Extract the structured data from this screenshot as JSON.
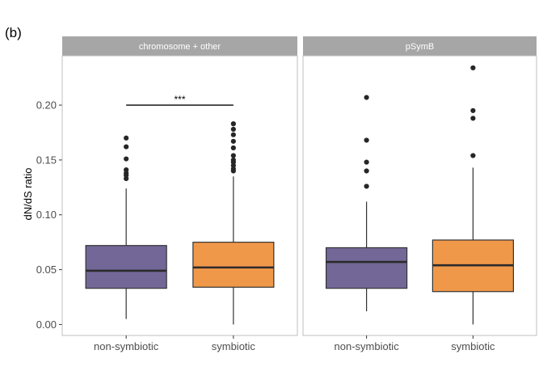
{
  "panel_tag": "(b)",
  "chart_data": {
    "type": "box",
    "ylabel": "dN/dS ratio",
    "xlabel": "",
    "ylim": [
      -0.01,
      0.245
    ],
    "yticks": [
      "0.00",
      "0.05",
      "0.10",
      "0.15",
      "0.20"
    ],
    "grid": false,
    "legend": "none",
    "colors": {
      "non-symbiotic": "#736797",
      "symbiotic": "#f0984a",
      "strip": "#a6a6a6"
    },
    "categories": [
      "non-symbiotic",
      "symbiotic"
    ],
    "facets": [
      {
        "title": "chromosome + other",
        "groups": [
          {
            "name": "non-symbiotic",
            "whisker_low": 0.005,
            "q1": 0.033,
            "median": 0.049,
            "q3": 0.072,
            "whisker_high": 0.124,
            "outliers": [
              0.133,
              0.136,
              0.138,
              0.141,
              0.151,
              0.162,
              0.17
            ]
          },
          {
            "name": "symbiotic",
            "whisker_low": 0.0,
            "q1": 0.034,
            "median": 0.052,
            "q3": 0.075,
            "whisker_high": 0.135,
            "outliers": [
              0.14,
              0.142,
              0.145,
              0.148,
              0.15,
              0.154,
              0.161,
              0.167,
              0.173,
              0.178,
              0.183
            ]
          }
        ],
        "significance": {
          "label": "***",
          "y": 0.2
        }
      },
      {
        "title": "pSymB",
        "groups": [
          {
            "name": "non-symbiotic",
            "whisker_low": 0.012,
            "q1": 0.033,
            "median": 0.057,
            "q3": 0.07,
            "whisker_high": 0.112,
            "outliers": [
              0.126,
              0.14,
              0.148,
              0.168,
              0.207
            ]
          },
          {
            "name": "symbiotic",
            "whisker_low": 0.0,
            "q1": 0.03,
            "median": 0.054,
            "q3": 0.077,
            "whisker_high": 0.143,
            "outliers": [
              0.154,
              0.188,
              0.195,
              0.234
            ]
          }
        ]
      }
    ]
  }
}
